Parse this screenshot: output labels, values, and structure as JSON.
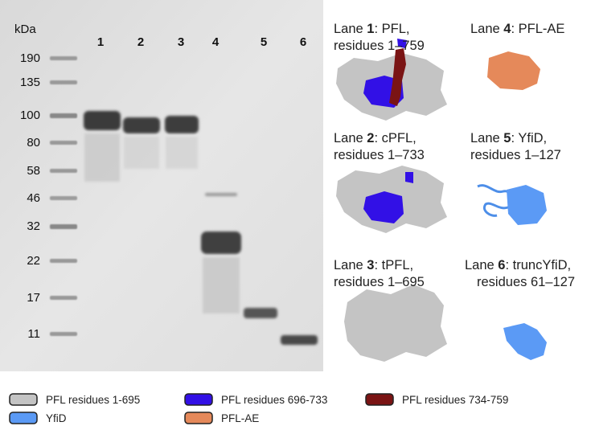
{
  "gel": {
    "unit": "kDa",
    "markers": [
      "190",
      "135",
      "100",
      "80",
      "58",
      "46",
      "32",
      "22",
      "17",
      "11"
    ],
    "lanes": [
      "1",
      "2",
      "3",
      "4",
      "5",
      "6"
    ]
  },
  "panels": [
    {
      "prefix": "Lane ",
      "lane": "1",
      "name": ": PFL,",
      "residues": "residues 1–759"
    },
    {
      "prefix": "Lane ",
      "lane": "4",
      "name": ": PFL-AE",
      "residues": null
    },
    {
      "prefix": "Lane ",
      "lane": "2",
      "name": ": cPFL,",
      "residues": "residues 1–733"
    },
    {
      "prefix": "Lane ",
      "lane": "5",
      "name": ": YfiD,",
      "residues": "residues 1–127"
    },
    {
      "prefix": "Lane ",
      "lane": "3",
      "name": ": tPFL,",
      "residues": "residues 1–695"
    },
    {
      "prefix": "Lane ",
      "lane": "6",
      "name": ": truncYfiD,",
      "residues": "residues 61–127"
    }
  ],
  "legend": [
    {
      "label": "PFL residues 1-695",
      "color": "#c4c4c4"
    },
    {
      "label": "YfiD",
      "color": "#5b9af5"
    },
    {
      "label": "PFL residues 696-733",
      "color": "#3210e6"
    },
    {
      "label": "PFL-AE",
      "color": "#e5895a"
    },
    {
      "label": "PFL residues 734-759",
      "color": "#7a1414"
    }
  ]
}
